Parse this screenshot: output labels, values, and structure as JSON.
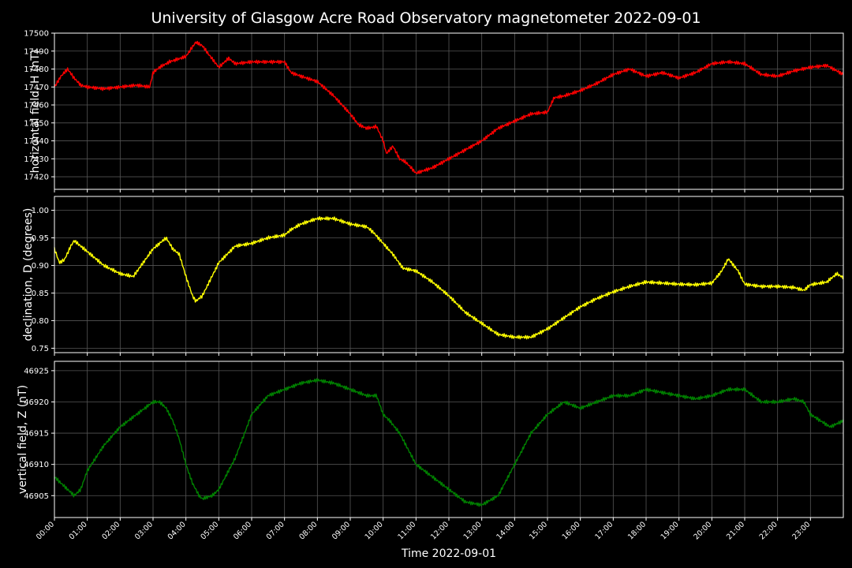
{
  "chart_data": {
    "type": "line",
    "title": "University of Glasgow Acre Road Observatory magnetometer 2022-09-01",
    "xlabel": "Time 2022-09-01",
    "x_ticks": [
      "00:00",
      "01:00",
      "02:00",
      "03:00",
      "04:00",
      "05:00",
      "06:00",
      "07:00",
      "08:00",
      "09:00",
      "10:00",
      "11:00",
      "12:00",
      "13:00",
      "14:00",
      "15:00",
      "16:00",
      "17:00",
      "18:00",
      "19:00",
      "20:00",
      "21:00",
      "22:00",
      "23:00"
    ],
    "xlim_hours": [
      0,
      24
    ],
    "grid": true,
    "panels": [
      {
        "ylabel": "horizontal field, H (nT)",
        "color": "#ff0000",
        "ylim": [
          17413,
          17500
        ],
        "yticks": [
          "17420",
          "17430",
          "17440",
          "17450",
          "17460",
          "17470",
          "17480",
          "17490",
          "17500"
        ],
        "series": [
          {
            "x": [
              0,
              0.2,
              0.4,
              0.6,
              0.8,
              1,
              1.5,
              2,
              2.5,
              2.9,
              3.0,
              3.2,
              3.5,
              4,
              4.3,
              4.5,
              4.7,
              5,
              5.3,
              5.5,
              6,
              6.5,
              7,
              7.2,
              7.5,
              8,
              8.5,
              9,
              9.25,
              9.5,
              9.8,
              10,
              10.1,
              10.3,
              10.5,
              10.7,
              11,
              11.5,
              12,
              12.5,
              13,
              13.5,
              14,
              14.5,
              15,
              15.2,
              15.5,
              16,
              16.5,
              17,
              17.5,
              18,
              18.5,
              19,
              19.5,
              20,
              20.5,
              21,
              21.5,
              22,
              22.5,
              23,
              23.5,
              24
            ],
            "y": [
              17470,
              17476,
              17480,
              17475,
              17471,
              17470,
              17469,
              17470,
              17471,
              17470,
              17478,
              17481,
              17484,
              17487,
              17495,
              17493,
              17488,
              17481,
              17486,
              17483,
              17484,
              17484,
              17484,
              17478,
              17476,
              17473,
              17465,
              17455,
              17449,
              17447,
              17448,
              17440,
              17433,
              17437,
              17430,
              17428,
              17422,
              17425,
              17430,
              17435,
              17440,
              17447,
              17451,
              17455,
              17456,
              17464,
              17465,
              17468,
              17472,
              17477,
              17480,
              17476,
              17478,
              17475,
              17478,
              17483,
              17484,
              17483,
              17477,
              17476,
              17479,
              17481,
              17482,
              17477
            ]
          }
        ]
      },
      {
        "ylabel": "declination, D (degrees)",
        "color": "#ffff00",
        "ylim": [
          0.742,
          1.025
        ],
        "yticks": [
          "0.75",
          "0.80",
          "0.85",
          "0.90",
          "0.95",
          "1.00"
        ],
        "series": [
          {
            "x": [
              0,
              0.15,
              0.3,
              0.5,
              0.6,
              1,
              1.5,
              2,
              2.4,
              3,
              3.2,
              3.4,
              3.6,
              3.8,
              4,
              4.2,
              4.3,
              4.5,
              5,
              5.5,
              6,
              6.5,
              7,
              7.2,
              7.5,
              8,
              8.5,
              9,
              9.5,
              9.7,
              10,
              10.3,
              10.6,
              11,
              11.5,
              12,
              12.5,
              13,
              13.5,
              14,
              14.5,
              15,
              15.5,
              16,
              16.5,
              17,
              17.5,
              18,
              18.5,
              19,
              19.5,
              20,
              20.3,
              20.5,
              20.8,
              21,
              21.5,
              22,
              22.5,
              22.8,
              23,
              23.5,
              23.8,
              24
            ],
            "y": [
              0.93,
              0.905,
              0.91,
              0.935,
              0.945,
              0.925,
              0.9,
              0.885,
              0.88,
              0.93,
              0.94,
              0.95,
              0.93,
              0.92,
              0.88,
              0.845,
              0.835,
              0.845,
              0.905,
              0.935,
              0.94,
              0.95,
              0.955,
              0.965,
              0.975,
              0.985,
              0.985,
              0.975,
              0.97,
              0.96,
              0.94,
              0.92,
              0.895,
              0.89,
              0.87,
              0.845,
              0.815,
              0.795,
              0.775,
              0.77,
              0.77,
              0.785,
              0.805,
              0.825,
              0.84,
              0.852,
              0.862,
              0.87,
              0.868,
              0.866,
              0.865,
              0.868,
              0.89,
              0.912,
              0.89,
              0.866,
              0.862,
              0.862,
              0.86,
              0.855,
              0.865,
              0.87,
              0.885,
              0.878
            ]
          }
        ]
      },
      {
        "ylabel": "vertical field, Z (nT)",
        "color": "#008000",
        "ylim": [
          46901.5,
          46926.5
        ],
        "yticks": [
          "46905",
          "46910",
          "46915",
          "46920",
          "46925"
        ],
        "series": [
          {
            "x": [
              0,
              0.2,
              0.4,
              0.6,
              0.8,
              1,
              1.5,
              2,
              2.5,
              3,
              3.2,
              3.4,
              3.6,
              3.8,
              4,
              4.2,
              4.4,
              4.5,
              4.8,
              5,
              5.5,
              6,
              6.5,
              7,
              7.5,
              8,
              8.5,
              9,
              9.5,
              9.8,
              10,
              10.2,
              10.5,
              10.8,
              11,
              11.5,
              12,
              12.5,
              13,
              13.5,
              14,
              14.5,
              15,
              15.5,
              16,
              16.5,
              17,
              17.5,
              18,
              18.5,
              19,
              19.5,
              20,
              20.5,
              21,
              21.5,
              22,
              22.5,
              22.8,
              23,
              23.3,
              23.6,
              24
            ],
            "y": [
              46908,
              46907,
              46906,
              46905,
              46906,
              46909,
              46913,
              46916,
              46918,
              46920,
              46920,
              46919,
              46917,
              46914,
              46910,
              46907,
              46905,
              46904.5,
              46905,
              46906,
              46911,
              46918,
              46921,
              46922,
              46923,
              46923.5,
              46923,
              46922,
              46921,
              46921,
              46918,
              46917,
              46915,
              46912,
              46910,
              46908,
              46906,
              46904,
              46903.5,
              46905,
              46910,
              46915,
              46918,
              46920,
              46919,
              46920,
              46921,
              46921,
              46922,
              46921.5,
              46921,
              46920.5,
              46921,
              46922,
              46922,
              46920,
              46920,
              46920.5,
              46920,
              46918,
              46917,
              46916,
              46917
            ]
          }
        ]
      }
    ]
  }
}
